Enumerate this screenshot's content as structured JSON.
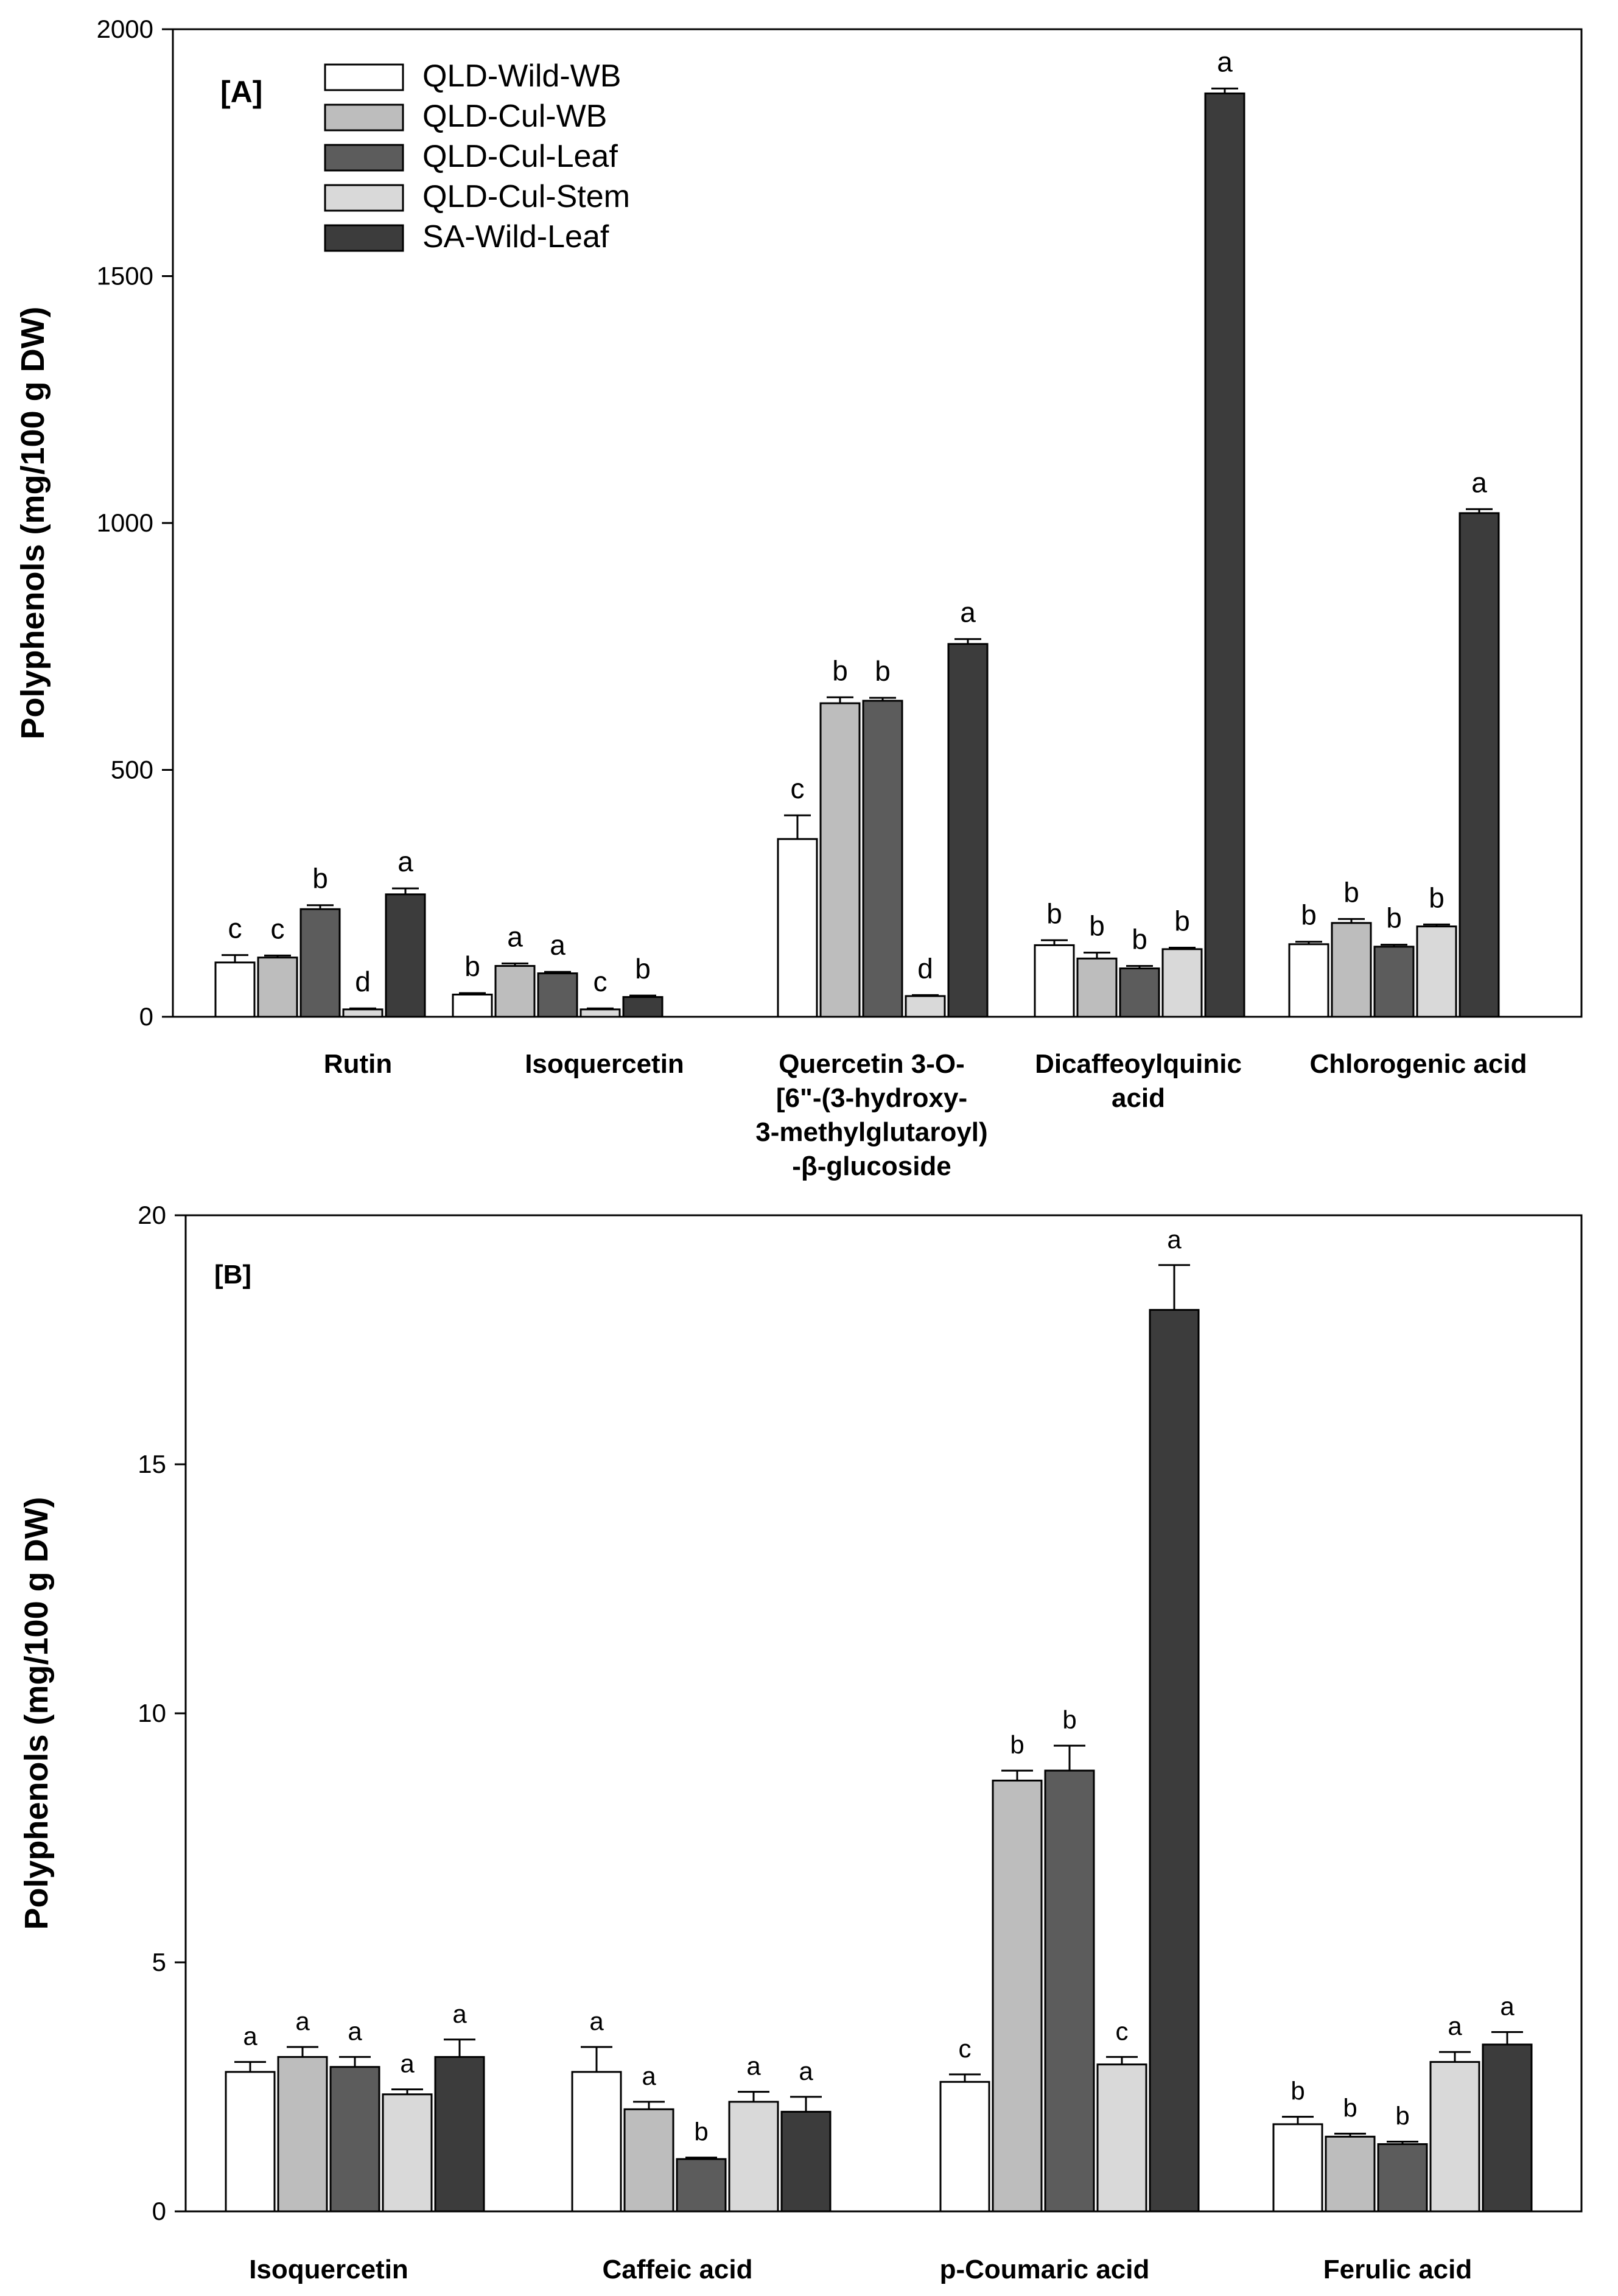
{
  "chart_data": [
    {
      "type": "bar",
      "panel_label": "[A]",
      "ylabel": "Polyphenols (mg/100 g DW)",
      "ylim": [
        0,
        2000
      ],
      "yticks": [
        0,
        500,
        1000,
        1500,
        2000
      ],
      "ytick_labels": [
        "0",
        "500",
        "1000",
        "1500",
        "2000"
      ],
      "legend_position": "top-left",
      "categories": [
        {
          "id": "rutin",
          "lines": [
            "Rutin"
          ]
        },
        {
          "id": "isoquercetin",
          "lines": [
            "Isoquercetin"
          ]
        },
        {
          "id": "quercetin-glucoside",
          "lines": [
            "Quercetin 3-O-",
            "[6\"-(3-hydroxy-",
            "3-methylglutaroyl)",
            "-β-glucoside"
          ]
        },
        {
          "id": "dicaffeoylquinic",
          "lines": [
            "Dicaffeoylquinic",
            "acid"
          ]
        },
        {
          "id": "chlorogenic",
          "lines": [
            "Chlorogenic acid"
          ]
        }
      ],
      "series": [
        {
          "name": "QLD-Wild-WB",
          "color": "#ffffff",
          "values": [
            110,
            45,
            360,
            145,
            147
          ],
          "errors": [
            15,
            3,
            48,
            10,
            5
          ],
          "letters": [
            "c",
            "b",
            "c",
            "b",
            "b"
          ]
        },
        {
          "name": "QLD-Cul-WB",
          "color": "#bdbdbd",
          "values": [
            120,
            103,
            635,
            118,
            190
          ],
          "errors": [
            4,
            5,
            12,
            12,
            8
          ],
          "letters": [
            "c",
            "a",
            "b",
            "b",
            "b"
          ]
        },
        {
          "name": "QLD-Cul-Leaf",
          "color": "#5c5c5c",
          "values": [
            218,
            88,
            640,
            98,
            142
          ],
          "errors": [
            8,
            3,
            6,
            5,
            4
          ],
          "letters": [
            "b",
            "a",
            "b",
            "b",
            "b"
          ]
        },
        {
          "name": "QLD-Cul-Stem",
          "color": "#d9d9d9",
          "values": [
            15,
            15,
            42,
            137,
            183
          ],
          "errors": [
            2,
            2,
            2,
            3,
            4
          ],
          "letters": [
            "d",
            "c",
            "d",
            "b",
            "b"
          ]
        },
        {
          "name": "SA-Wild-Leaf",
          "color": "#3c3c3c",
          "values": [
            248,
            40,
            755,
            1870,
            1020
          ],
          "errors": [
            12,
            3,
            10,
            10,
            8
          ],
          "letters": [
            "a",
            "b",
            "a",
            "a",
            "a"
          ]
        }
      ]
    },
    {
      "type": "bar",
      "panel_label": "[B]",
      "ylabel": "Polyphenols (mg/100 g DW)",
      "ylim": [
        0,
        20
      ],
      "yticks": [
        0,
        5,
        10,
        15,
        20
      ],
      "ytick_labels": [
        "0",
        "5",
        "10",
        "15",
        "20"
      ],
      "categories": [
        {
          "id": "isoquercetin",
          "lines": [
            "Isoquercetin"
          ]
        },
        {
          "id": "caffeic",
          "lines": [
            "Caffeic acid"
          ]
        },
        {
          "id": "p-coumaric",
          "lines": [
            "p-Coumaric acid"
          ]
        },
        {
          "id": "ferulic",
          "lines": [
            "Ferulic acid"
          ]
        }
      ],
      "series": [
        {
          "name": "QLD-Wild-WB",
          "color": "#ffffff",
          "values": [
            2.8,
            2.8,
            2.6,
            1.75
          ],
          "errors": [
            0.2,
            0.5,
            0.15,
            0.15
          ],
          "letters": [
            "a",
            "a",
            "c",
            "b"
          ]
        },
        {
          "name": "QLD-Cul-WB",
          "color": "#bdbdbd",
          "values": [
            3.1,
            2.05,
            8.65,
            1.5
          ],
          "errors": [
            0.2,
            0.15,
            0.2,
            0.06
          ],
          "letters": [
            "a",
            "a",
            "b",
            "b"
          ]
        },
        {
          "name": "QLD-Cul-Leaf",
          "color": "#5c5c5c",
          "values": [
            2.9,
            1.05,
            8.85,
            1.35
          ],
          "errors": [
            0.2,
            0.03,
            0.5,
            0.05
          ],
          "letters": [
            "a",
            "b",
            "b",
            "b"
          ]
        },
        {
          "name": "QLD-Cul-Stem",
          "color": "#d9d9d9",
          "values": [
            2.35,
            2.2,
            2.95,
            3.0
          ],
          "errors": [
            0.1,
            0.2,
            0.15,
            0.2
          ],
          "letters": [
            "a",
            "a",
            "c",
            "a"
          ]
        },
        {
          "name": "SA-Wild-Leaf",
          "color": "#3c3c3c",
          "values": [
            3.1,
            2.0,
            18.1,
            3.35
          ],
          "errors": [
            0.35,
            0.3,
            0.9,
            0.25
          ],
          "letters": [
            "a",
            "a",
            "a",
            "a"
          ]
        }
      ]
    }
  ]
}
